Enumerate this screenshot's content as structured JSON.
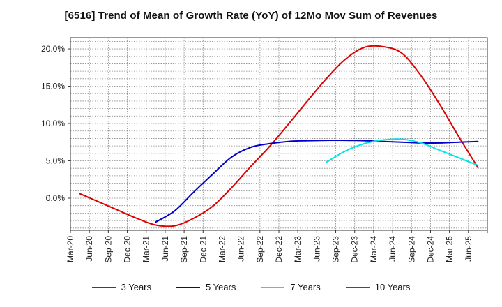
{
  "chart_data": {
    "type": "line",
    "title": "[6516]  Trend of Mean of Growth Rate (YoY) of 12Mo Mov Sum of Revenues",
    "xlabel": "",
    "ylabel": "",
    "categories": [
      "Mar-20",
      "Jun-20",
      "Sep-20",
      "Dec-20",
      "Mar-21",
      "Jun-21",
      "Sep-21",
      "Dec-21",
      "Mar-22",
      "Jun-22",
      "Sep-22",
      "Dec-22",
      "Mar-23",
      "Jun-23",
      "Sep-23",
      "Dec-23",
      "Mar-24",
      "Jun-24",
      "Sep-24",
      "Dec-24",
      "Mar-25",
      "Jun-25"
    ],
    "y_tick_values": [
      0,
      5,
      10,
      15,
      20
    ],
    "y_tick_labels": [
      "0.0%",
      "5.0%",
      "10.0%",
      "15.0%",
      "20.0%"
    ],
    "ylim": [
      -4.3,
      21.5
    ],
    "grid": true,
    "legend_position": "bottom",
    "series": [
      {
        "name": "3 Years",
        "color": "#dd0000",
        "values": [
          0.6,
          -0.5,
          -1.6,
          -2.7,
          -3.6,
          -3.7,
          -2.7,
          -1.1,
          1.4,
          4.2,
          6.9,
          9.9,
          13.0,
          16.0,
          18.6,
          20.2,
          20.3,
          19.4,
          16.4,
          12.5,
          8.2,
          4.1
        ]
      },
      {
        "name": "5 Years",
        "color": "#0000cc",
        "values": [
          null,
          null,
          null,
          null,
          -3.2,
          -1.7,
          0.8,
          3.2,
          5.5,
          6.8,
          7.3,
          7.6,
          7.7,
          7.75,
          7.75,
          7.7,
          7.6,
          7.5,
          7.4,
          7.4,
          7.5,
          7.6
        ]
      },
      {
        "name": "7 Years",
        "color": "#00e5e5",
        "values": [
          null,
          null,
          null,
          null,
          null,
          null,
          null,
          null,
          null,
          null,
          null,
          null,
          null,
          4.8,
          6.3,
          7.3,
          7.8,
          7.9,
          7.4,
          6.4,
          5.4,
          4.4
        ]
      },
      {
        "name": "10 Years",
        "color": "#008000",
        "values": [
          null,
          null,
          null,
          null,
          null,
          null,
          null,
          null,
          null,
          null,
          null,
          null,
          null,
          null,
          null,
          null,
          null,
          null,
          null,
          null,
          null,
          null
        ]
      }
    ]
  }
}
